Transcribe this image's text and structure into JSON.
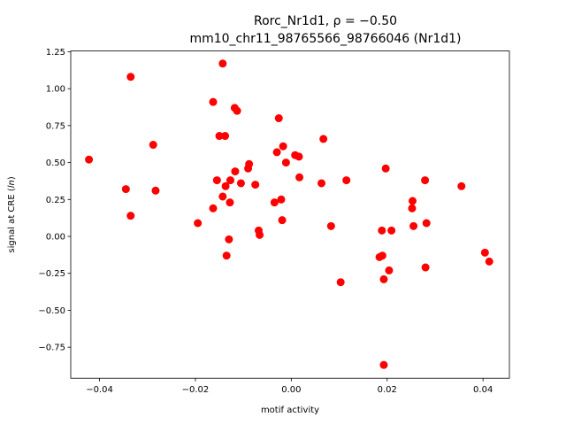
{
  "chart_data": {
    "type": "scatter",
    "title_line1": "Rorc_Nr1d1, ρ = −0.50",
    "title_line2": "mm10_chr11_98765566_98766046 (Nr1d1)",
    "xlabel": "motif activity",
    "ylabel": "signal at CRE (ln)",
    "xlim": [
      -0.046,
      0.0455
    ],
    "ylim": [
      -0.96,
      1.255
    ],
    "xticks": [
      -0.04,
      -0.02,
      0.0,
      0.02,
      0.04
    ],
    "xtick_labels": [
      "−0.04",
      "−0.02",
      "0.00",
      "0.02",
      "0.04"
    ],
    "yticks": [
      -0.75,
      -0.5,
      -0.25,
      0.0,
      0.25,
      0.5,
      0.75,
      1.0,
      1.25
    ],
    "ytick_labels": [
      "−0.75",
      "−0.50",
      "−0.25",
      "0.00",
      "0.25",
      "0.50",
      "0.75",
      "1.00",
      "1.25"
    ],
    "grid": false,
    "color": "#ff0000",
    "points": [
      {
        "x": -0.0422,
        "y": 0.52
      },
      {
        "x": -0.0345,
        "y": 0.32
      },
      {
        "x": -0.0335,
        "y": 1.08
      },
      {
        "x": -0.0335,
        "y": 0.14
      },
      {
        "x": -0.0288,
        "y": 0.62
      },
      {
        "x": -0.0283,
        "y": 0.31
      },
      {
        "x": -0.0195,
        "y": 0.09
      },
      {
        "x": -0.0163,
        "y": 0.91
      },
      {
        "x": -0.0163,
        "y": 0.19
      },
      {
        "x": -0.0155,
        "y": 0.38
      },
      {
        "x": -0.015,
        "y": 0.68
      },
      {
        "x": -0.0143,
        "y": 1.17
      },
      {
        "x": -0.0143,
        "y": 0.27
      },
      {
        "x": -0.0138,
        "y": 0.68
      },
      {
        "x": -0.0137,
        "y": 0.34
      },
      {
        "x": -0.0135,
        "y": -0.13
      },
      {
        "x": -0.013,
        "y": -0.02
      },
      {
        "x": -0.0128,
        "y": 0.23
      },
      {
        "x": -0.0127,
        "y": 0.38
      },
      {
        "x": -0.0118,
        "y": 0.87
      },
      {
        "x": -0.0117,
        "y": 0.44
      },
      {
        "x": -0.0113,
        "y": 0.85
      },
      {
        "x": -0.0105,
        "y": 0.36
      },
      {
        "x": -0.009,
        "y": 0.46
      },
      {
        "x": -0.0088,
        "y": 0.49
      },
      {
        "x": -0.0075,
        "y": 0.35
      },
      {
        "x": -0.0068,
        "y": 0.04
      },
      {
        "x": -0.0066,
        "y": 0.01
      },
      {
        "x": -0.0035,
        "y": 0.23
      },
      {
        "x": -0.003,
        "y": 0.57
      },
      {
        "x": -0.0026,
        "y": 0.8
      },
      {
        "x": -0.0021,
        "y": 0.25
      },
      {
        "x": -0.0019,
        "y": 0.11
      },
      {
        "x": -0.0017,
        "y": 0.61
      },
      {
        "x": -0.0011,
        "y": 0.5
      },
      {
        "x": 0.0008,
        "y": 0.55
      },
      {
        "x": 0.0016,
        "y": 0.54
      },
      {
        "x": 0.0017,
        "y": 0.4
      },
      {
        "x": 0.0063,
        "y": 0.36
      },
      {
        "x": 0.0067,
        "y": 0.66
      },
      {
        "x": 0.0083,
        "y": 0.07
      },
      {
        "x": 0.0103,
        "y": -0.31
      },
      {
        "x": 0.0115,
        "y": 0.38
      },
      {
        "x": 0.0184,
        "y": -0.14
      },
      {
        "x": 0.0189,
        "y": 0.04
      },
      {
        "x": 0.019,
        "y": -0.13
      },
      {
        "x": 0.0193,
        "y": -0.29
      },
      {
        "x": 0.0193,
        "y": -0.87
      },
      {
        "x": 0.0197,
        "y": 0.46
      },
      {
        "x": 0.0204,
        "y": -0.23
      },
      {
        "x": 0.0209,
        "y": 0.04
      },
      {
        "x": 0.0252,
        "y": 0.19
      },
      {
        "x": 0.0253,
        "y": 0.24
      },
      {
        "x": 0.0255,
        "y": 0.07
      },
      {
        "x": 0.0279,
        "y": 0.38
      },
      {
        "x": 0.028,
        "y": -0.21
      },
      {
        "x": 0.0282,
        "y": 0.09
      },
      {
        "x": 0.0355,
        "y": 0.34
      },
      {
        "x": 0.0404,
        "y": -0.11
      },
      {
        "x": 0.0413,
        "y": -0.17
      }
    ]
  }
}
